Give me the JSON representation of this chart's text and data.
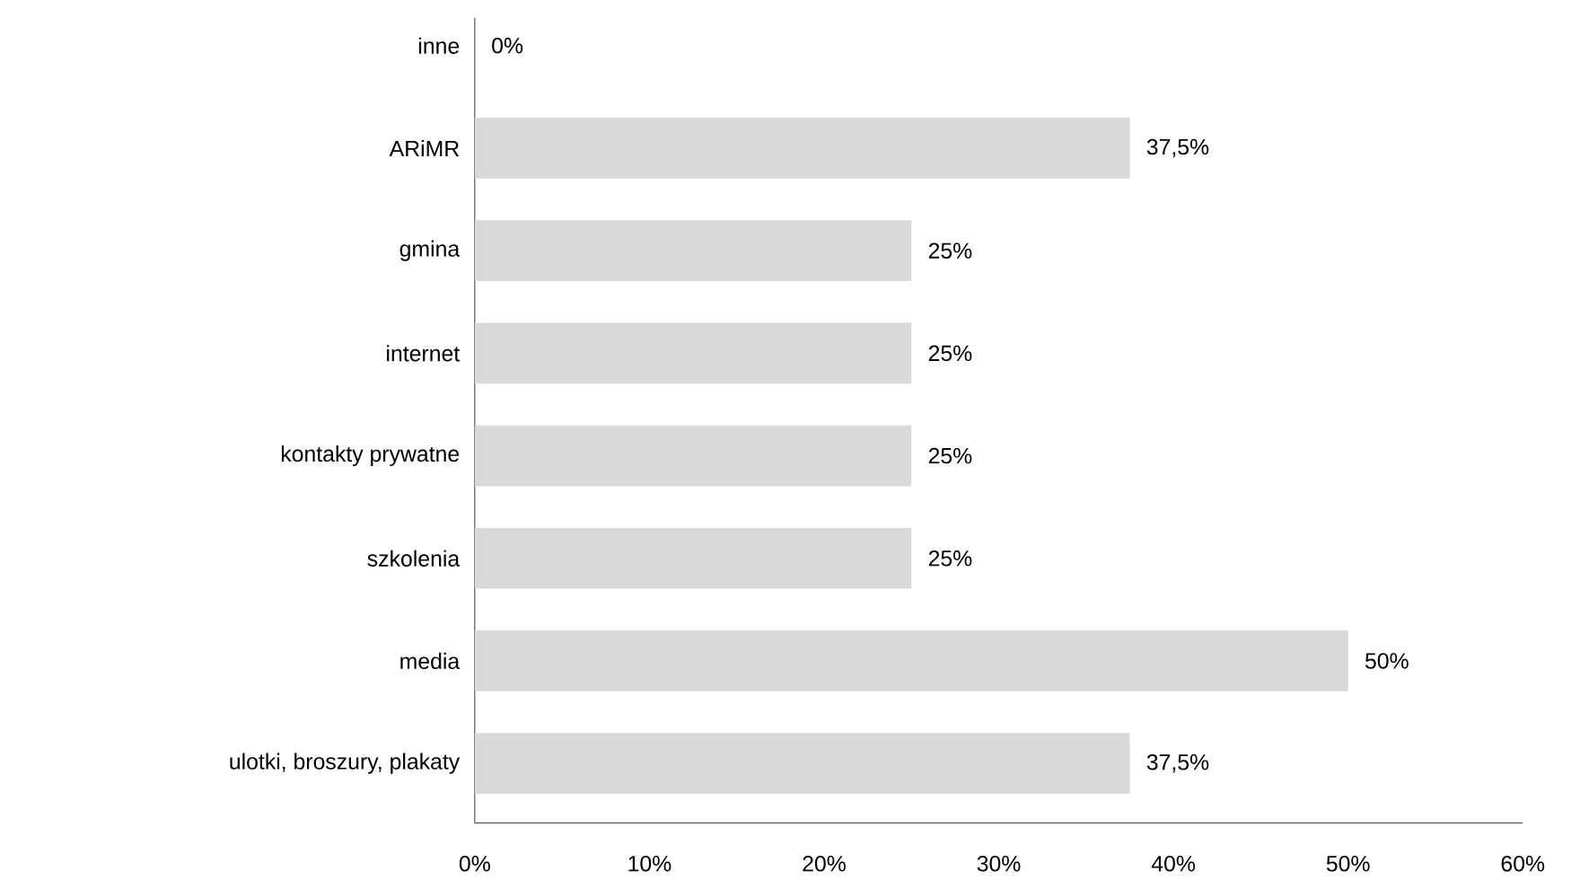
{
  "chart_data": {
    "type": "bar",
    "orientation": "horizontal",
    "categories": [
      "inne",
      "ARiMR",
      "gmina",
      "internet",
      "kontakty prywatne",
      "szkolenia",
      "media",
      "ulotki, broszury, plakaty"
    ],
    "values": [
      0,
      37.5,
      25,
      25,
      25,
      25,
      50,
      37.5
    ],
    "value_labels": [
      "0%",
      "37,5%",
      "25%",
      "25%",
      "25%",
      "25%",
      "50%",
      "37,5%"
    ],
    "color": "#d9d9d9",
    "xlim": [
      0,
      60
    ],
    "xticks": [
      {
        "value": 0,
        "label": "0%"
      },
      {
        "value": 10,
        "label": "10%"
      },
      {
        "value": 20,
        "label": "20%"
      },
      {
        "value": 30,
        "label": "30%"
      },
      {
        "value": 40,
        "label": "40%"
      },
      {
        "value": 50,
        "label": "50%"
      },
      {
        "value": 60,
        "label": "60%"
      }
    ],
    "grid": false
  }
}
